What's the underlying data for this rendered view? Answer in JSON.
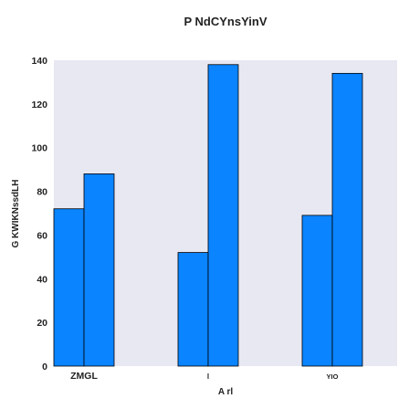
{
  "chart_data": {
    "type": "bar",
    "title": "P NdCYnsYinV",
    "xlabel": "A rl",
    "ylabel": "G KWIKNssdLH",
    "categories": [
      "ZMGL",
      "l",
      "YIO"
    ],
    "series": [
      {
        "values": [
          72,
          52,
          69
        ]
      },
      {
        "values": [
          88,
          138,
          134
        ]
      }
    ],
    "ylim": [
      0,
      140
    ],
    "yticks": [
      0,
      20,
      40,
      60,
      80,
      100,
      120,
      140
    ],
    "grid": false,
    "legend": "none",
    "colors": {
      "bar_fill": "#0a84ff",
      "bar_edge": "#000000",
      "plot_background": "#e8e8f2",
      "text": "#222222"
    }
  }
}
